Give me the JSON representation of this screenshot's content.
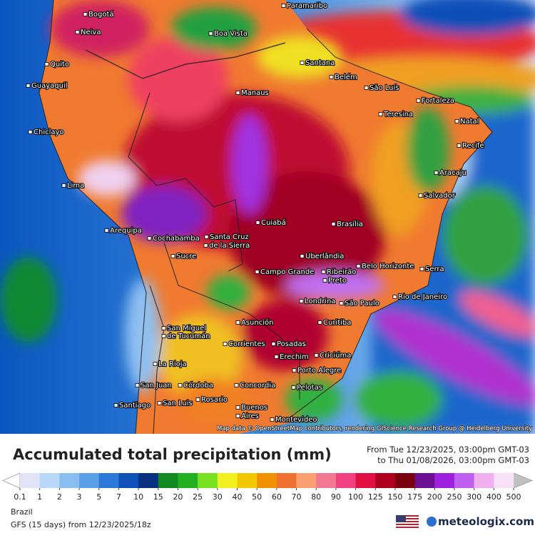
{
  "map": {
    "cities": [
      "Paramaribo",
      "Bogotá",
      "Neiva",
      "Boa Vista",
      "Quito",
      "Guayaquil",
      "Santana",
      "Belém",
      "São Luís",
      "Manaus",
      "Fortaleza",
      "Teresina",
      "Natal",
      "Chiclayo",
      "Recife",
      "Aracaju",
      "Lima",
      "Salvador",
      "Arequipa",
      "Cuiabá",
      "Brasília",
      "Cochabamba",
      "Santa Cruz",
      "de la Sierra",
      "Sucre",
      "Uberlândia",
      "Belo Horizonte",
      "Serra",
      "Campo Grande",
      "Ribeirão",
      "Preto",
      "Rio de Janeiro",
      "Londrina",
      "São Paulo",
      "Asunción",
      "San Miguel",
      "de Tucumán",
      "Curitiba",
      "Corrientes",
      "Posadas",
      "Erechim",
      "Criciúma",
      "La Rioja",
      "Porto Alegre",
      "San Juan",
      "Córdoba",
      "Concordia",
      "Pelotas",
      "Rosario",
      "Santiago",
      "San Luis",
      "Buenos",
      "Aires",
      "Montevideo"
    ],
    "attribution": "Map data © OpenStreetMap contributors, rendering GIScience Research Group @ Heidelberg University"
  },
  "header": {
    "title": "Accumulated total precipitation (mm)",
    "from": "From Tue 12/23/2025, 03:00pm GMT-03",
    "to": "to Thu 01/08/2026, 03:00pm GMT-03"
  },
  "legend": {
    "labels": [
      0.1,
      1,
      2,
      3,
      5,
      7,
      10,
      15,
      20,
      25,
      30,
      40,
      50,
      60,
      70,
      80,
      90,
      100,
      125,
      150,
      175,
      200,
      250,
      300,
      400,
      500
    ],
    "colors": [
      "#e2e2f8",
      "#b8d8f8",
      "#88bff0",
      "#5aa0e8",
      "#2a78d8",
      "#1050b8",
      "#083080",
      "#108a20",
      "#22b020",
      "#78e020",
      "#f2f020",
      "#f2c800",
      "#f09200",
      "#f07030",
      "#f8a070",
      "#f07890",
      "#f04080",
      "#e01040",
      "#b00020",
      "#7a0010",
      "#6a1090",
      "#a020e0",
      "#c060f0",
      "#f0b0f0",
      "#f8e0f8"
    ],
    "low_color": "#ffffff",
    "high_color": "#c0c0c0"
  },
  "footer": {
    "region": "Brazil",
    "model": "GFS (15 days) from 12/23/2025/18z",
    "brand": "meteologix.com"
  }
}
